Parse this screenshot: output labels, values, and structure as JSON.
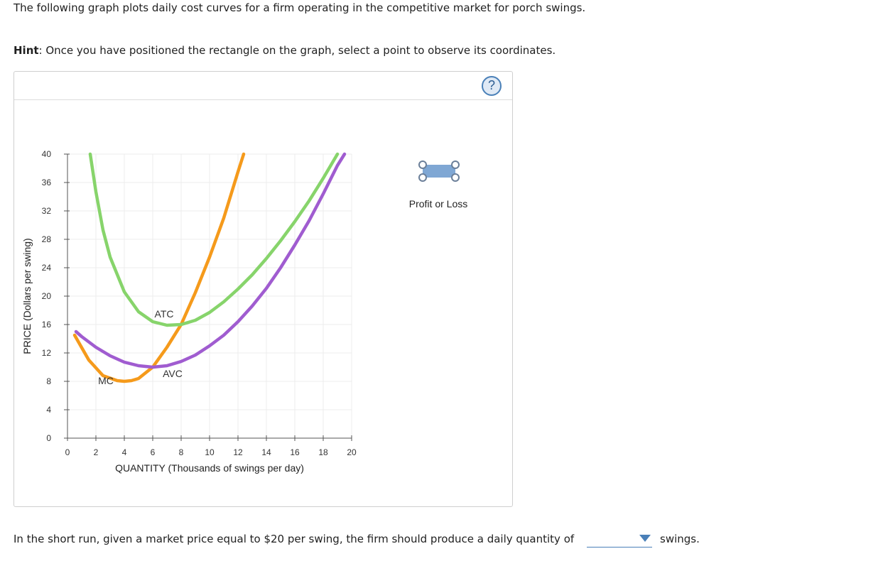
{
  "intro": "The following graph plots daily cost curves for a firm operating in the competitive market for porch swings.",
  "hint": {
    "label": "Hint",
    "text": ": Once you have positioned the rectangle on the graph, select a point to observe its coordinates."
  },
  "help": {
    "glyph": "?"
  },
  "tool": {
    "label": "Profit or Loss",
    "color": "#7fa7d4"
  },
  "question": {
    "prefix": "In the short run, given a market price equal to $20 per swing, the firm should produce a daily quantity of",
    "selected": "",
    "suffix": "swings."
  },
  "chart_data": {
    "type": "line",
    "title": "",
    "xlabel": "QUANTITY (Thousands of swings per day)",
    "ylabel": "PRICE (Dollars per swing)",
    "xlim": [
      0,
      20
    ],
    "ylim": [
      0,
      40
    ],
    "xticks": [
      0,
      2,
      4,
      6,
      8,
      10,
      12,
      14,
      16,
      18,
      20
    ],
    "yticks": [
      0,
      4,
      8,
      12,
      16,
      20,
      24,
      28,
      32,
      36,
      40
    ],
    "grid": true,
    "series": [
      {
        "name": "MC",
        "color": "#f59a1b",
        "points": [
          [
            0.5,
            14.5
          ],
          [
            1.5,
            11
          ],
          [
            2.5,
            8.8
          ],
          [
            3.5,
            8.1
          ],
          [
            4,
            8
          ],
          [
            4.5,
            8.1
          ],
          [
            5,
            8.4
          ],
          [
            6,
            10
          ],
          [
            7,
            12.8
          ],
          [
            8,
            16
          ],
          [
            9,
            20.5
          ],
          [
            10,
            25.5
          ],
          [
            11,
            31
          ],
          [
            12,
            37.5
          ],
          [
            12.4,
            40
          ]
        ]
      },
      {
        "name": "ATC",
        "color": "#87d46b",
        "points": [
          [
            1.6,
            40
          ],
          [
            2,
            34.7
          ],
          [
            2.5,
            29.3
          ],
          [
            3,
            25.5
          ],
          [
            4,
            20.6
          ],
          [
            5,
            17.8
          ],
          [
            6,
            16.4
          ],
          [
            7,
            15.9
          ],
          [
            8,
            16
          ],
          [
            9,
            16.6
          ],
          [
            10,
            17.7
          ],
          [
            11,
            19.2
          ],
          [
            12,
            21
          ],
          [
            13,
            23
          ],
          [
            14,
            25.3
          ],
          [
            15,
            27.8
          ],
          [
            16,
            30.5
          ],
          [
            17,
            33.4
          ],
          [
            18,
            36.6
          ],
          [
            19,
            40
          ]
        ]
      },
      {
        "name": "AVC",
        "color": "#a05cd0",
        "points": [
          [
            0.6,
            15
          ],
          [
            1,
            14.3
          ],
          [
            2,
            12.8
          ],
          [
            3,
            11.6
          ],
          [
            4,
            10.7
          ],
          [
            5,
            10.2
          ],
          [
            6,
            10
          ],
          [
            7,
            10.2
          ],
          [
            8,
            10.8
          ],
          [
            9,
            11.7
          ],
          [
            10,
            13
          ],
          [
            11,
            14.5
          ],
          [
            12,
            16.4
          ],
          [
            13,
            18.6
          ],
          [
            14,
            21.1
          ],
          [
            15,
            24
          ],
          [
            16,
            27.2
          ],
          [
            17,
            30.6
          ],
          [
            18,
            34.4
          ],
          [
            19,
            38.4
          ],
          [
            19.5,
            40
          ]
        ]
      }
    ],
    "curve_labels": [
      {
        "text": "ATC",
        "x": 6.8,
        "y": 17
      },
      {
        "text": "AVC",
        "x": 7.4,
        "y": 8.6
      },
      {
        "text": "MC",
        "x": 2.7,
        "y": 7.6
      }
    ]
  }
}
